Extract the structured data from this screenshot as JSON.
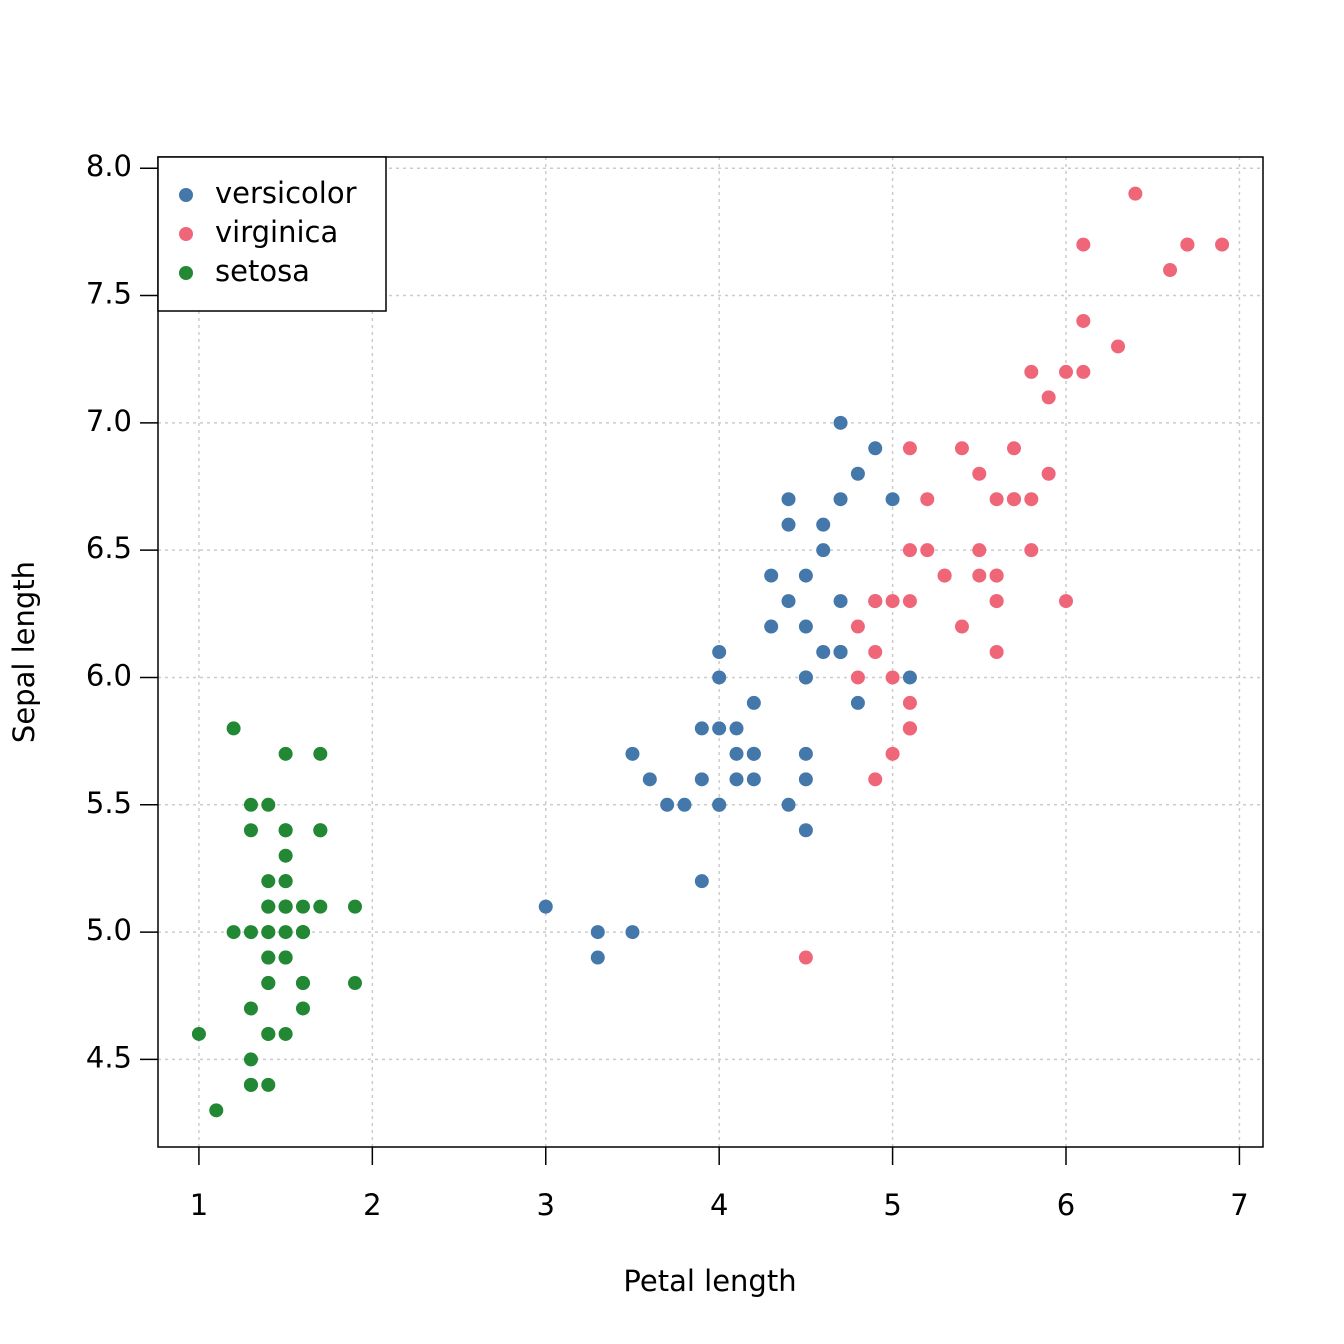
{
  "chart_data": {
    "type": "scatter",
    "x_label": "Petal length",
    "y_label": "Sepal length",
    "xlim": [
      0.764,
      7.136
    ],
    "ylim": [
      4.156,
      8.044
    ],
    "xticks": [
      1,
      2,
      3,
      4,
      5,
      6,
      7
    ],
    "yticks": [
      4.5,
      {
        "value": 5.0,
        "label": "5.0"
      },
      5.5,
      {
        "value": 6.0,
        "label": "6.0"
      },
      6.5,
      {
        "value": 7.0,
        "label": "7.0"
      },
      7.5,
      {
        "value": 8.0,
        "label": "8.0"
      }
    ],
    "grid": true,
    "legend": "top-left",
    "series": [
      {
        "name": "versicolor",
        "color": "#4477aa",
        "x": [
          4.7,
          4.5,
          4.9,
          4.0,
          4.6,
          4.5,
          4.7,
          3.3,
          4.6,
          3.9,
          3.5,
          4.2,
          4.0,
          4.7,
          3.6,
          4.4,
          4.5,
          4.1,
          4.5,
          3.9,
          4.8,
          4.0,
          4.9,
          4.7,
          4.3,
          4.4,
          4.8,
          5.0,
          4.5,
          3.5,
          3.8,
          3.7,
          3.9,
          5.1,
          4.5,
          4.5,
          4.7,
          4.4,
          4.1,
          4.0,
          4.4,
          4.6,
          4.0,
          3.3,
          4.2,
          4.2,
          4.2,
          4.3,
          3.0,
          4.1
        ],
        "values": [
          7.0,
          6.4,
          6.9,
          5.5,
          6.5,
          5.7,
          6.3,
          4.9,
          6.6,
          5.2,
          5.0,
          5.9,
          6.0,
          6.1,
          5.6,
          6.7,
          5.6,
          5.8,
          6.2,
          5.6,
          5.9,
          6.1,
          6.3,
          6.1,
          6.4,
          6.6,
          6.8,
          6.7,
          6.0,
          5.7,
          5.5,
          5.5,
          5.8,
          6.0,
          5.4,
          6.0,
          6.7,
          6.3,
          5.6,
          5.5,
          5.5,
          6.1,
          5.8,
          5.0,
          5.6,
          5.7,
          5.7,
          6.2,
          5.1,
          5.7
        ]
      },
      {
        "name": "virginica",
        "color": "#ee6677",
        "x": [
          6.0,
          5.1,
          5.9,
          5.6,
          5.8,
          6.6,
          4.5,
          6.3,
          5.8,
          6.1,
          5.1,
          5.3,
          5.5,
          5.0,
          5.1,
          5.3,
          5.5,
          6.7,
          6.9,
          5.0,
          5.7,
          4.9,
          6.7,
          4.9,
          5.7,
          6.0,
          4.8,
          4.9,
          5.6,
          5.8,
          6.1,
          6.4,
          5.6,
          5.1,
          5.6,
          6.1,
          5.6,
          5.5,
          4.8,
          5.4,
          5.6,
          5.1,
          5.1,
          5.9,
          5.7,
          5.2,
          5.0,
          5.2,
          5.4,
          5.1
        ],
        "values": [
          6.3,
          5.8,
          7.1,
          6.3,
          6.5,
          7.6,
          4.9,
          7.3,
          6.7,
          7.2,
          6.5,
          6.4,
          6.8,
          5.7,
          5.8,
          6.4,
          6.5,
          7.7,
          7.7,
          6.0,
          6.9,
          5.6,
          7.7,
          6.3,
          6.7,
          7.2,
          6.2,
          6.1,
          6.4,
          7.2,
          7.4,
          7.9,
          6.4,
          6.3,
          6.1,
          7.7,
          6.3,
          6.4,
          6.0,
          6.9,
          6.7,
          6.9,
          5.8,
          6.8,
          6.7,
          6.7,
          6.3,
          6.5,
          6.2,
          5.9
        ]
      },
      {
        "name": "setosa",
        "color": "#228833",
        "x": [
          1.4,
          1.4,
          1.3,
          1.5,
          1.4,
          1.7,
          1.4,
          1.5,
          1.4,
          1.5,
          1.5,
          1.6,
          1.4,
          1.1,
          1.2,
          1.5,
          1.3,
          1.4,
          1.7,
          1.5,
          1.7,
          1.5,
          1.0,
          1.7,
          1.9,
          1.6,
          1.6,
          1.5,
          1.4,
          1.6,
          1.6,
          1.5,
          1.5,
          1.4,
          1.5,
          1.2,
          1.3,
          1.4,
          1.3,
          1.5,
          1.3,
          1.3,
          1.3,
          1.6,
          1.9,
          1.4,
          1.6,
          1.4,
          1.5,
          1.4
        ],
        "values": [
          5.1,
          4.9,
          4.7,
          4.6,
          5.0,
          5.4,
          4.6,
          5.0,
          4.4,
          4.9,
          5.4,
          4.8,
          4.8,
          4.3,
          5.8,
          5.7,
          5.4,
          5.1,
          5.7,
          5.1,
          5.4,
          5.1,
          4.6,
          5.1,
          4.8,
          5.0,
          5.0,
          5.2,
          5.2,
          4.7,
          4.8,
          5.4,
          5.2,
          5.5,
          4.9,
          5.0,
          5.5,
          4.9,
          4.4,
          5.1,
          5.0,
          4.5,
          4.4,
          5.0,
          5.1,
          4.8,
          5.1,
          4.6,
          5.3,
          5.0
        ]
      }
    ]
  }
}
